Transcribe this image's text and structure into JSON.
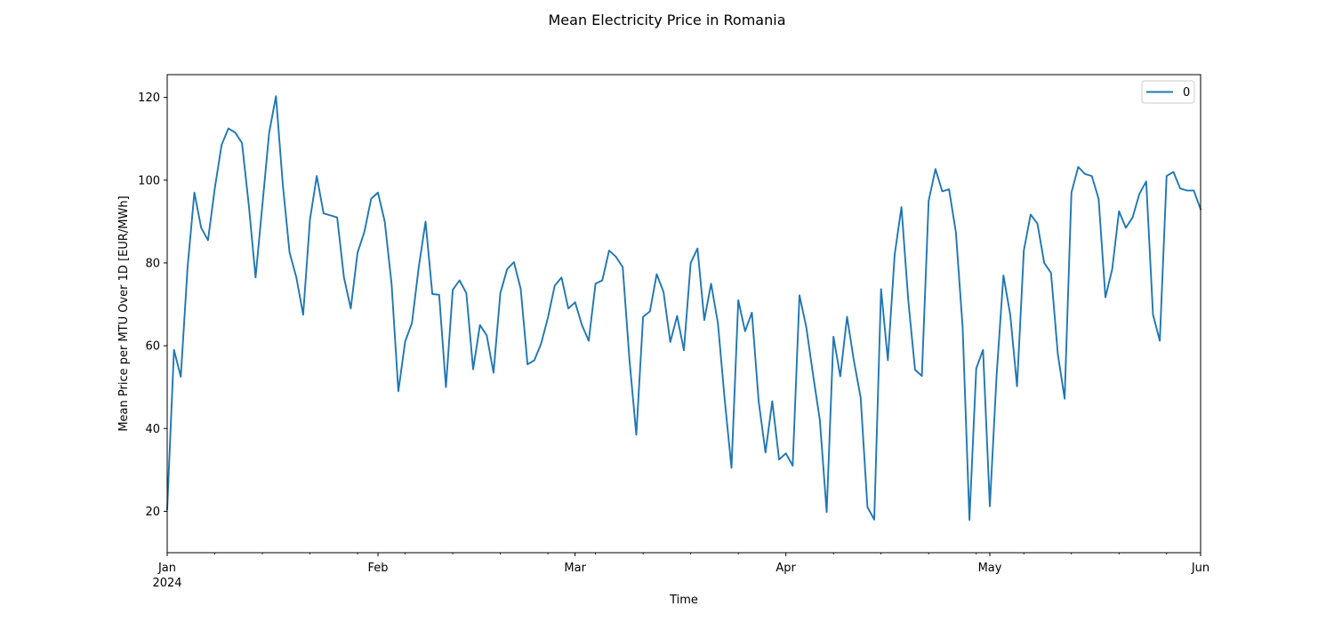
{
  "chart_data": {
    "type": "line",
    "title": "Mean Electricity Price in Romania",
    "xlabel": "Time",
    "ylabel": "Mean Price per MTU Over 1D [EUR/MWh]",
    "x_start": "2024-01-01",
    "x_end": "2024-06-01",
    "ylim": [
      10,
      125.5
    ],
    "yticks": [
      20,
      40,
      60,
      80,
      100,
      120
    ],
    "x_major_ticks": [
      {
        "date": "2024-01-01",
        "label": "Jan",
        "sublabel": "2024"
      },
      {
        "date": "2024-02-01",
        "label": "Feb",
        "sublabel": ""
      },
      {
        "date": "2024-03-01",
        "label": "Mar",
        "sublabel": ""
      },
      {
        "date": "2024-04-01",
        "label": "Apr",
        "sublabel": ""
      },
      {
        "date": "2024-05-01",
        "label": "May",
        "sublabel": ""
      },
      {
        "date": "2024-06-01",
        "label": "Jun",
        "sublabel": ""
      }
    ],
    "x_minor_ticks": [
      "2024-01-08",
      "2024-01-15",
      "2024-01-22",
      "2024-01-29",
      "2024-02-05",
      "2024-02-12",
      "2024-02-19",
      "2024-02-26",
      "2024-03-04",
      "2024-03-11",
      "2024-03-18",
      "2024-03-25",
      "2024-04-08",
      "2024-04-15",
      "2024-04-22",
      "2024-04-29",
      "2024-05-06",
      "2024-05-13",
      "2024-05-20",
      "2024-05-27"
    ],
    "legend": {
      "position": "top-right"
    },
    "color": "#1f77b4",
    "series": [
      {
        "name": "0",
        "x": [
          "2024-01-01",
          "2024-01-02",
          "2024-01-03",
          "2024-01-04",
          "2024-01-05",
          "2024-01-06",
          "2024-01-07",
          "2024-01-08",
          "2024-01-09",
          "2024-01-10",
          "2024-01-11",
          "2024-01-12",
          "2024-01-13",
          "2024-01-14",
          "2024-01-15",
          "2024-01-16",
          "2024-01-17",
          "2024-01-18",
          "2024-01-19",
          "2024-01-20",
          "2024-01-21",
          "2024-01-22",
          "2024-01-23",
          "2024-01-24",
          "2024-01-25",
          "2024-01-26",
          "2024-01-27",
          "2024-01-28",
          "2024-01-29",
          "2024-01-30",
          "2024-01-31",
          "2024-02-01",
          "2024-02-02",
          "2024-02-03",
          "2024-02-04",
          "2024-02-05",
          "2024-02-06",
          "2024-02-07",
          "2024-02-08",
          "2024-02-09",
          "2024-02-10",
          "2024-02-11",
          "2024-02-12",
          "2024-02-13",
          "2024-02-14",
          "2024-02-15",
          "2024-02-16",
          "2024-02-17",
          "2024-02-18",
          "2024-02-19",
          "2024-02-20",
          "2024-02-21",
          "2024-02-22",
          "2024-02-23",
          "2024-02-24",
          "2024-02-25",
          "2024-02-26",
          "2024-02-27",
          "2024-02-28",
          "2024-02-29",
          "2024-03-01",
          "2024-03-02",
          "2024-03-03",
          "2024-03-04",
          "2024-03-05",
          "2024-03-06",
          "2024-03-07",
          "2024-03-08",
          "2024-03-09",
          "2024-03-10",
          "2024-03-11",
          "2024-03-12",
          "2024-03-13",
          "2024-03-14",
          "2024-03-15",
          "2024-03-16",
          "2024-03-17",
          "2024-03-18",
          "2024-03-19",
          "2024-03-20",
          "2024-03-21",
          "2024-03-22",
          "2024-03-23",
          "2024-03-24",
          "2024-03-25",
          "2024-03-26",
          "2024-03-27",
          "2024-03-28",
          "2024-03-29",
          "2024-03-30",
          "2024-03-31",
          "2024-04-01",
          "2024-04-02",
          "2024-04-03",
          "2024-04-04",
          "2024-04-05",
          "2024-04-06",
          "2024-04-07",
          "2024-04-08",
          "2024-04-09",
          "2024-04-10",
          "2024-04-11",
          "2024-04-12",
          "2024-04-13",
          "2024-04-14",
          "2024-04-15",
          "2024-04-16",
          "2024-04-17",
          "2024-04-18",
          "2024-04-19",
          "2024-04-20",
          "2024-04-21",
          "2024-04-22",
          "2024-04-23",
          "2024-04-24",
          "2024-04-25",
          "2024-04-26",
          "2024-04-27",
          "2024-04-28",
          "2024-04-29",
          "2024-04-30",
          "2024-05-01",
          "2024-05-02",
          "2024-05-03",
          "2024-05-04",
          "2024-05-05",
          "2024-05-06",
          "2024-05-07",
          "2024-05-08",
          "2024-05-09",
          "2024-05-10",
          "2024-05-11",
          "2024-05-12",
          "2024-05-13",
          "2024-05-14",
          "2024-05-15",
          "2024-05-16",
          "2024-05-17",
          "2024-05-18",
          "2024-05-19",
          "2024-05-20",
          "2024-05-21",
          "2024-05-22",
          "2024-05-23",
          "2024-05-24",
          "2024-05-25",
          "2024-05-26",
          "2024-05-27",
          "2024-05-28",
          "2024-05-29",
          "2024-05-30",
          "2024-05-31",
          "2024-06-01"
        ],
        "values": [
          20.5,
          59,
          52.5,
          79,
          97,
          88.5,
          85.5,
          98,
          108.5,
          112.5,
          111.5,
          109,
          94,
          76.5,
          94,
          111.5,
          120.3,
          99,
          82.5,
          76.5,
          67.5,
          90.5,
          101,
          92,
          91.5,
          91,
          76.5,
          69,
          82.5,
          87.5,
          95.5,
          97,
          90,
          75,
          49,
          61,
          65.5,
          79,
          90,
          72.5,
          72.3,
          50,
          73.5,
          75.8,
          72.7,
          54.3,
          65,
          62.5,
          53.5,
          72.7,
          78.5,
          80.2,
          73.7,
          55.5,
          56.5,
          60.5,
          66.8,
          74.5,
          76.5,
          69,
          70.5,
          65,
          61.2,
          75,
          75.8,
          83,
          81.5,
          79,
          56.5,
          38.5,
          67,
          68.3,
          77.3,
          73,
          60.9,
          67.2,
          58.9,
          80,
          83.5,
          66.2,
          75,
          65.5,
          47,
          30.5,
          71,
          63.5,
          68,
          46.5,
          34.2,
          46.6,
          32.5,
          34,
          31,
          72.2,
          64.5,
          53,
          42,
          19.8,
          62.2,
          52.6,
          67,
          56.4,
          47.5,
          21,
          18,
          73.7,
          56.5,
          82,
          93.5,
          71,
          54.2,
          52.7,
          95,
          102.7,
          97.3,
          97.8,
          87.5,
          64.5,
          17.9,
          54.5,
          59,
          21.2,
          53,
          77,
          67.5,
          50.2,
          83,
          91.7,
          89.5,
          80,
          77.6,
          58,
          47.2,
          97,
          103.2,
          101.5,
          101,
          95.5,
          71.7,
          78.5,
          92.5,
          88.5,
          91,
          96.7,
          99.7,
          67.5,
          61.2,
          101,
          102,
          98,
          97.5,
          97.5,
          93
        ]
      }
    ]
  }
}
